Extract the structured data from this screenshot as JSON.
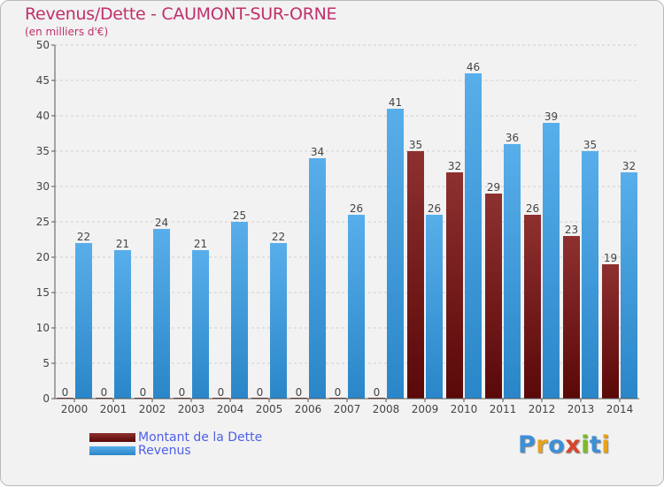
{
  "title": "Revenus/Dette - CAUMONT-SUR-ORNE",
  "subtitle": "(en milliers d'€)",
  "colors": {
    "title": "#c0306b",
    "dette": "#6b1414",
    "revenus": "#3a9ee0",
    "legend_text": "#4e5fe8",
    "background": "#f2f2f2"
  },
  "legend": [
    {
      "label": "Montant de la Dette",
      "color": "#6b1414"
    },
    {
      "label": "Revenus",
      "color": "#3a9ee0"
    }
  ],
  "logo": {
    "text": "Proxiti"
  },
  "chart_data": {
    "type": "bar",
    "title": "Revenus/Dette - CAUMONT-SUR-ORNE",
    "subtitle": "(en milliers d'€)",
    "xlabel": "",
    "ylabel": "",
    "ylim": [
      0,
      50
    ],
    "yticks": [
      0,
      5,
      10,
      15,
      20,
      25,
      30,
      35,
      40,
      45,
      50
    ],
    "grid": true,
    "legend_position": "bottom-left",
    "categories": [
      "2000",
      "2001",
      "2002",
      "2003",
      "2004",
      "2005",
      "2006",
      "2007",
      "2008",
      "2009",
      "2010",
      "2011",
      "2012",
      "2013",
      "2014"
    ],
    "series": [
      {
        "name": "Montant de la Dette",
        "values": [
          0,
          0,
          0,
          0,
          0,
          0,
          0,
          0,
          0,
          35,
          32,
          29,
          26,
          23,
          19
        ]
      },
      {
        "name": "Revenus",
        "values": [
          22,
          21,
          24,
          21,
          25,
          22,
          34,
          26,
          41,
          26,
          46,
          36,
          39,
          35,
          32
        ]
      }
    ]
  }
}
